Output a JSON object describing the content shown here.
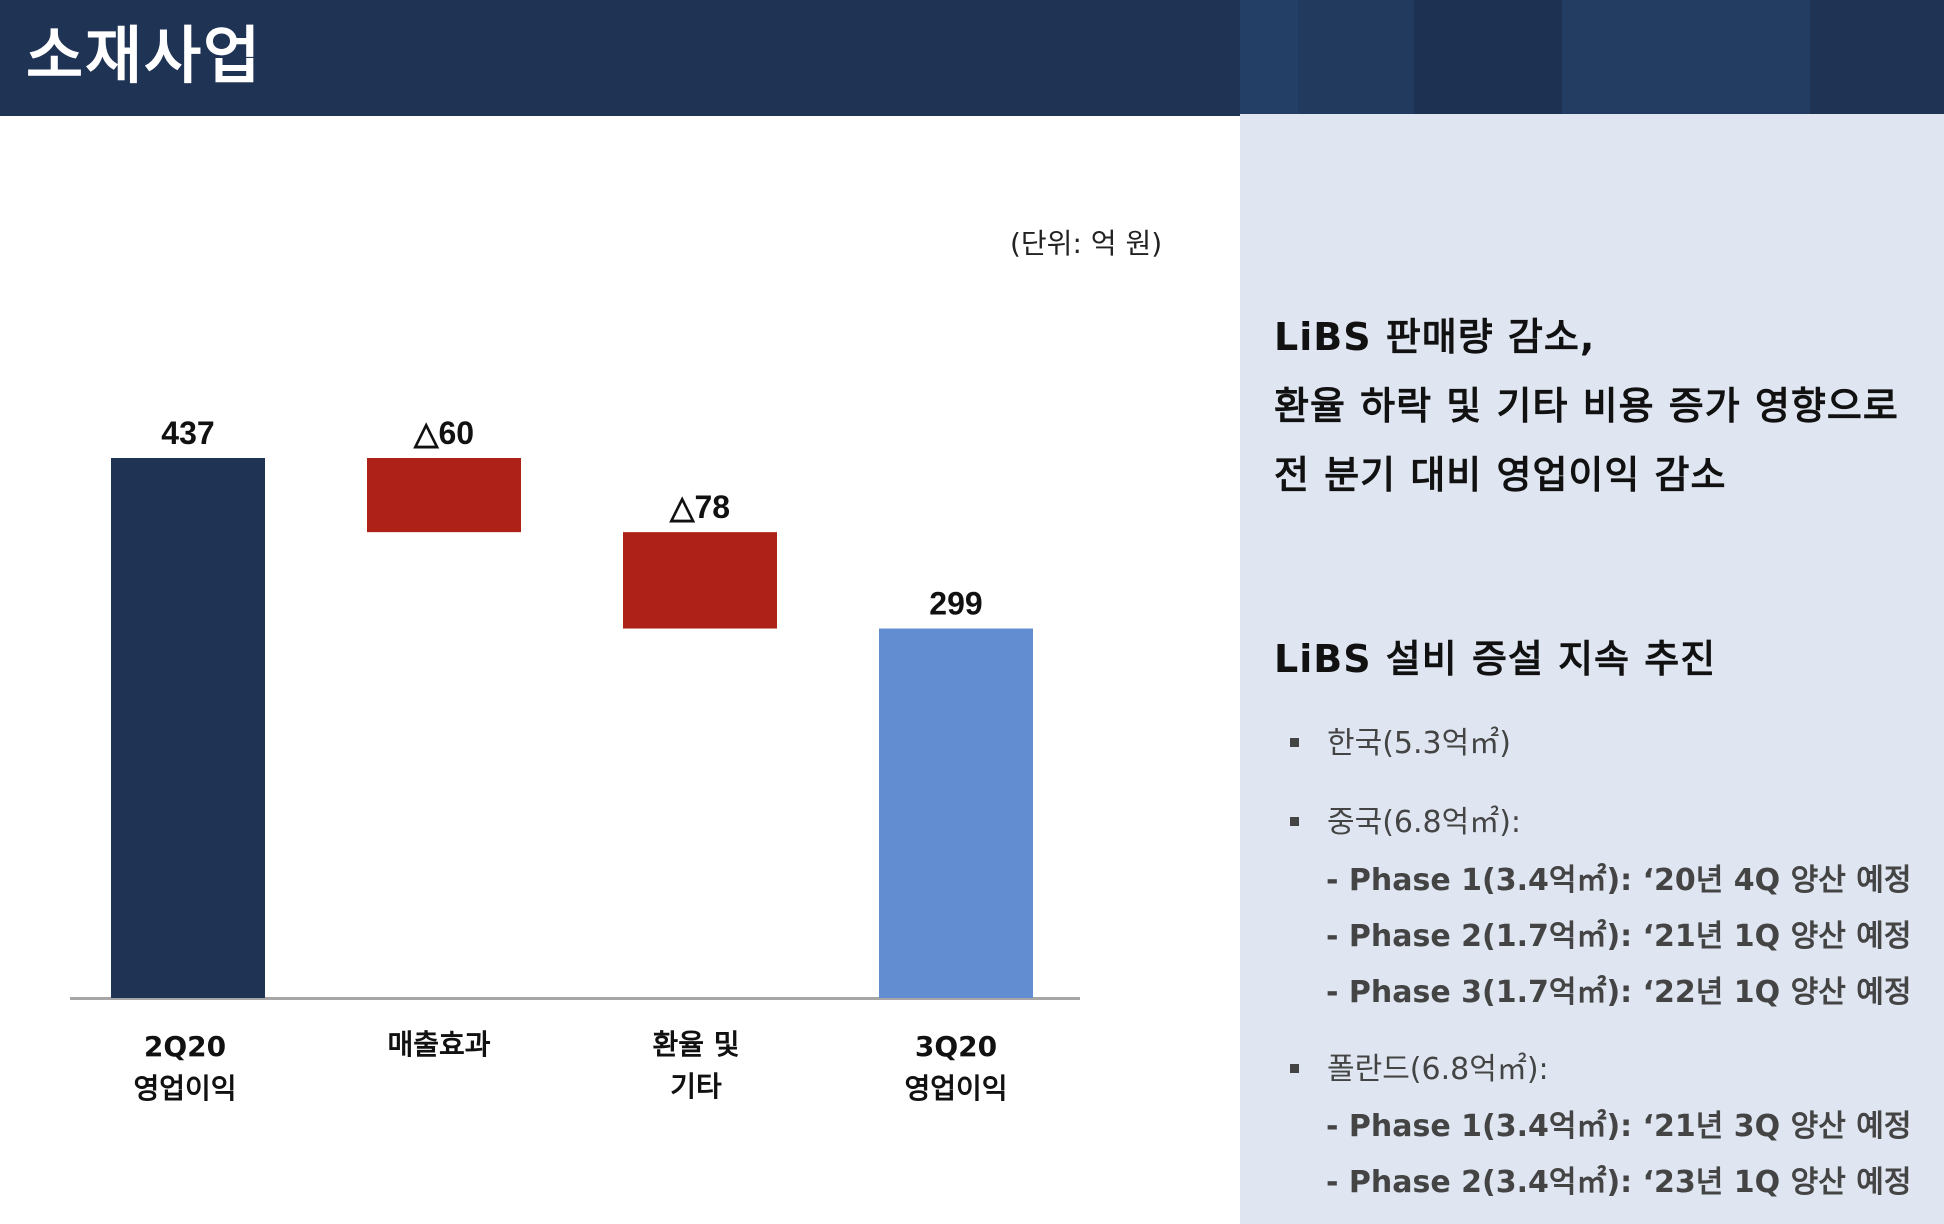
{
  "header": {
    "title": "소재사업"
  },
  "unit_label": "(단위: 억 원)",
  "chart_data": {
    "type": "waterfall",
    "categories": [
      "2Q20 영업이익",
      "매출효과",
      "환율 및 기타",
      "3Q20 영업이익"
    ],
    "tick_labels": [
      [
        "2Q20",
        "영업이익"
      ],
      [
        "매출효과"
      ],
      [
        "환율 및",
        "기타"
      ],
      [
        "3Q20",
        "영업이익"
      ]
    ],
    "values": [
      437,
      -60,
      -78,
      299
    ],
    "data_labels": [
      "437",
      "△60",
      "△78",
      "299"
    ],
    "ylim": [
      0,
      437
    ],
    "colors": [
      "#1f3354",
      "#ae2118",
      "#ae2118",
      "#628dd0"
    ]
  },
  "right_panel": {
    "headline_lines": [
      "LiBS 판매량 감소,",
      "환율 하락 및 기타 비용 증가 영향으로",
      "전 분기 대비 영업이익 감소"
    ],
    "section_title": "LiBS 설비 증설 지속 추진",
    "korea": "한국(5.3억㎡)",
    "china": "중국(6.8억㎡):",
    "china_phases": [
      "- Phase 1(3.4억㎡): ‘20년 4Q 양산 예정",
      "- Phase 2(1.7억㎡): ‘21년 1Q 양산 예정",
      "- Phase 3(1.7억㎡): ‘22년 1Q 양산 예정"
    ],
    "poland": "폴란드(6.8억㎡):",
    "poland_phases": [
      "- Phase 1(3.4억㎡): ‘21년 3Q 양산 예정",
      "- Phase 2(3.4억㎡): ‘23년 1Q 양산 예정"
    ]
  }
}
